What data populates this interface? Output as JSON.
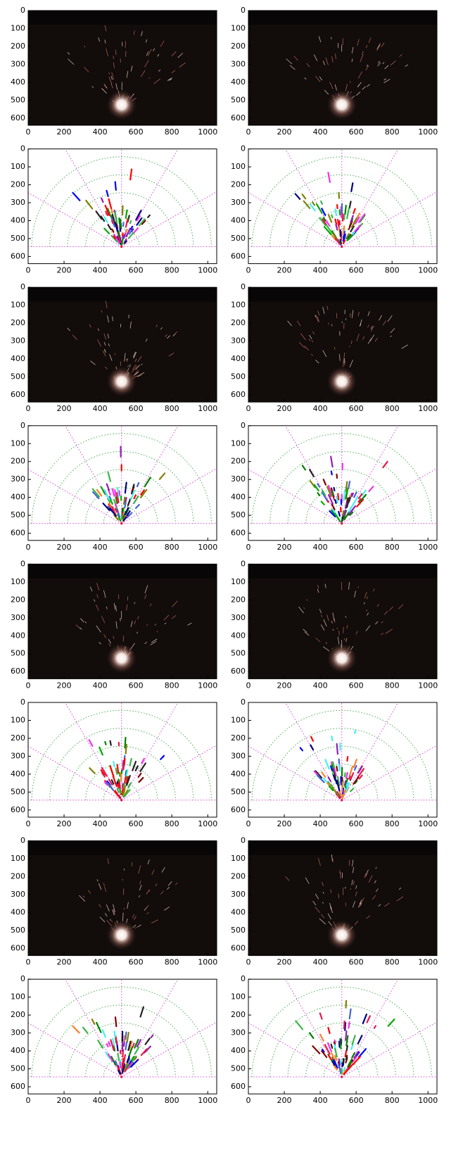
{
  "chart_data": [
    {
      "type": "image",
      "xlim": [
        0,
        1050
      ],
      "ylim": [
        640,
        0
      ],
      "xticks": [
        0,
        200,
        400,
        600,
        800,
        1000
      ],
      "yticks": [
        0,
        100,
        200,
        300,
        400,
        500,
        600
      ]
    },
    {
      "type": "image",
      "xlim": [
        0,
        1050
      ],
      "ylim": [
        640,
        0
      ],
      "xticks": [
        0,
        200,
        400,
        600,
        800,
        1000
      ],
      "yticks": [
        0,
        100,
        200,
        300,
        400,
        500,
        600
      ]
    },
    {
      "type": "detection",
      "xlim": [
        0,
        1050
      ],
      "ylim": [
        640,
        0
      ],
      "xticks": [
        0,
        200,
        400,
        600,
        800,
        1000
      ],
      "yticks": [
        0,
        100,
        200,
        300,
        400,
        500,
        600
      ]
    },
    {
      "type": "detection",
      "xlim": [
        0,
        1050
      ],
      "ylim": [
        640,
        0
      ],
      "xticks": [
        0,
        200,
        400,
        600,
        800,
        1000
      ],
      "yticks": [
        0,
        100,
        200,
        300,
        400,
        500,
        600
      ]
    },
    {
      "type": "image",
      "xlim": [
        0,
        1050
      ],
      "ylim": [
        640,
        0
      ],
      "xticks": [
        0,
        200,
        400,
        600,
        800,
        1000
      ],
      "yticks": [
        0,
        100,
        200,
        300,
        400,
        500,
        600
      ]
    },
    {
      "type": "image",
      "xlim": [
        0,
        1050
      ],
      "ylim": [
        640,
        0
      ],
      "xticks": [
        0,
        200,
        400,
        600,
        800,
        1000
      ],
      "yticks": [
        0,
        100,
        200,
        300,
        400,
        500,
        600
      ]
    },
    {
      "type": "detection",
      "xlim": [
        0,
        1050
      ],
      "ylim": [
        640,
        0
      ],
      "xticks": [
        0,
        200,
        400,
        600,
        800,
        1000
      ],
      "yticks": [
        0,
        100,
        200,
        300,
        400,
        500,
        600
      ]
    },
    {
      "type": "detection",
      "xlim": [
        0,
        1050
      ],
      "ylim": [
        640,
        0
      ],
      "xticks": [
        0,
        200,
        400,
        600,
        800,
        1000
      ],
      "yticks": [
        0,
        100,
        200,
        300,
        400,
        500,
        600
      ]
    },
    {
      "type": "image",
      "xlim": [
        0,
        1050
      ],
      "ylim": [
        640,
        0
      ],
      "xticks": [
        0,
        200,
        400,
        600,
        800,
        1000
      ],
      "yticks": [
        0,
        100,
        200,
        300,
        400,
        500,
        600
      ]
    },
    {
      "type": "image",
      "xlim": [
        0,
        1050
      ],
      "ylim": [
        640,
        0
      ],
      "xticks": [
        0,
        200,
        400,
        600,
        800,
        1000
      ],
      "yticks": [
        0,
        100,
        200,
        300,
        400,
        500,
        600
      ]
    },
    {
      "type": "detection",
      "xlim": [
        0,
        1050
      ],
      "ylim": [
        640,
        0
      ],
      "xticks": [
        0,
        200,
        400,
        600,
        800,
        1000
      ],
      "yticks": [
        0,
        100,
        200,
        300,
        400,
        500,
        600
      ]
    },
    {
      "type": "detection",
      "xlim": [
        0,
        1050
      ],
      "ylim": [
        640,
        0
      ],
      "xticks": [
        0,
        200,
        400,
        600,
        800,
        1000
      ],
      "yticks": [
        0,
        100,
        200,
        300,
        400,
        500,
        600
      ]
    },
    {
      "type": "image",
      "xlim": [
        0,
        1050
      ],
      "ylim": [
        640,
        0
      ],
      "xticks": [
        0,
        200,
        400,
        600,
        800,
        1000
      ],
      "yticks": [
        0,
        100,
        200,
        300,
        400,
        500,
        600
      ]
    },
    {
      "type": "image",
      "xlim": [
        0,
        1050
      ],
      "ylim": [
        640,
        0
      ],
      "xticks": [
        0,
        200,
        400,
        600,
        800,
        1000
      ],
      "yticks": [
        0,
        100,
        200,
        300,
        400,
        500,
        600
      ]
    },
    {
      "type": "detection",
      "xlim": [
        0,
        1050
      ],
      "ylim": [
        640,
        0
      ],
      "xticks": [
        0,
        200,
        400,
        600,
        800,
        1000
      ],
      "yticks": [
        0,
        100,
        200,
        300,
        400,
        500,
        600
      ]
    },
    {
      "type": "detection",
      "xlim": [
        0,
        1050
      ],
      "ylim": [
        640,
        0
      ],
      "xticks": [
        0,
        200,
        400,
        600,
        800,
        1000
      ],
      "yticks": [
        0,
        100,
        200,
        300,
        400,
        500,
        600
      ]
    }
  ]
}
